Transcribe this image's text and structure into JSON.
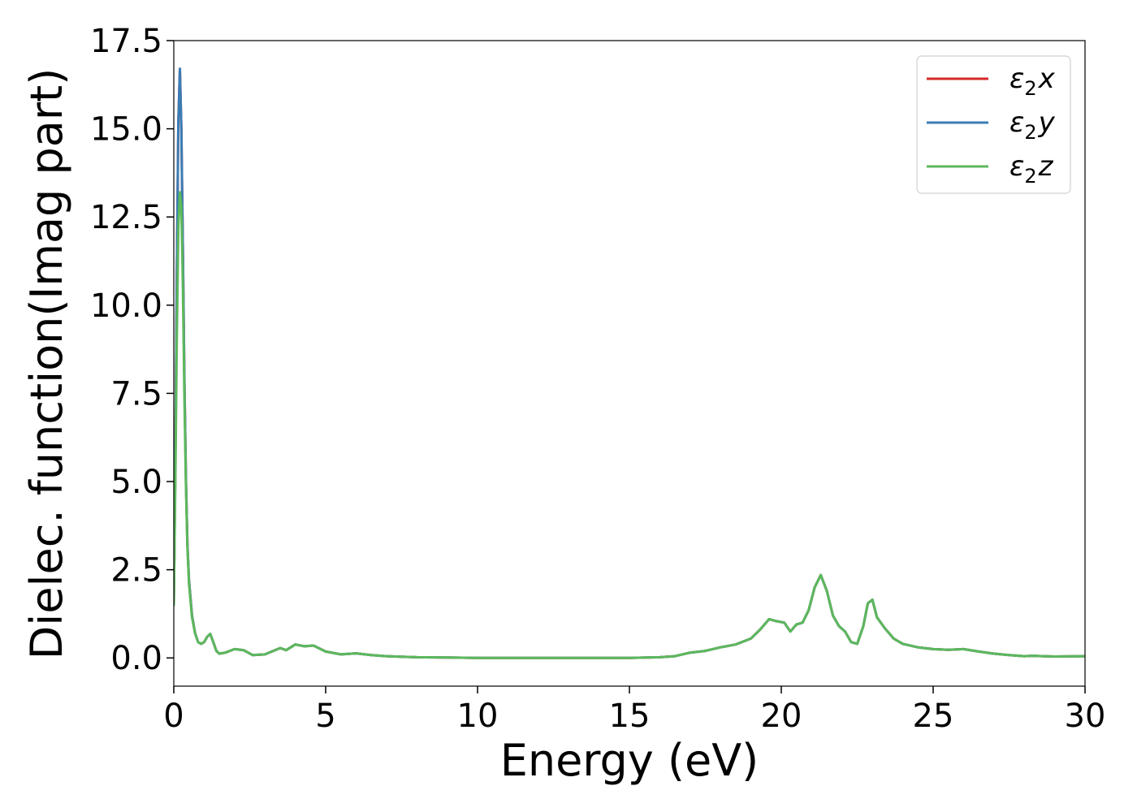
{
  "chart_data": {
    "type": "line",
    "xlabel": "Energy (eV)",
    "ylabel": "Dielec. function(Imag part)",
    "xlim": [
      0,
      30
    ],
    "ylim": [
      -0.8,
      17.5
    ],
    "x_ticks": [
      0,
      5,
      10,
      15,
      20,
      25,
      30
    ],
    "y_ticks": [
      0.0,
      2.5,
      5.0,
      7.5,
      10.0,
      12.5,
      15.0,
      17.5
    ],
    "x_tick_labels": [
      "0",
      "5",
      "10",
      "15",
      "20",
      "25",
      "30"
    ],
    "y_tick_labels": [
      "0.0",
      "2.5",
      "5.0",
      "7.5",
      "10.0",
      "12.5",
      "15.0",
      "17.5"
    ],
    "grid": false,
    "legend_position": "top-right",
    "series": [
      {
        "name": "ε₂x",
        "legend_main": "ε",
        "legend_sub": "2",
        "legend_var": "x",
        "color": "#d62728",
        "x": [
          0,
          0.05,
          0.1,
          0.15,
          0.2,
          0.25,
          0.3,
          0.35,
          0.4,
          0.45,
          0.5,
          0.6,
          0.7,
          0.8,
          0.9,
          1.0,
          1.1,
          1.2,
          1.3,
          1.4,
          1.5,
          1.7,
          2.0,
          2.3,
          2.6,
          3.0,
          3.5,
          3.7,
          4.0,
          4.3,
          4.6,
          5.0,
          5.5,
          6.0,
          6.5,
          7.0,
          8.0,
          9.0,
          10.0,
          11.0,
          12.0,
          13.0,
          14.0,
          15.0,
          16.0,
          16.5,
          17.0,
          17.5,
          18.0,
          18.5,
          19.0,
          19.3,
          19.6,
          19.8,
          20.1,
          20.3,
          20.5,
          20.7,
          20.9,
          21.1,
          21.3,
          21.5,
          21.7,
          21.9,
          22.1,
          22.3,
          22.5,
          22.7,
          22.85,
          23.0,
          23.15,
          23.4,
          23.7,
          24.0,
          24.5,
          25.0,
          25.5,
          26.0,
          26.5,
          27.0,
          27.5,
          28.0,
          28.3,
          28.6,
          29.0,
          30.0
        ],
        "values": [
          1.5,
          5.5,
          10.8,
          15.2,
          16.7,
          15.0,
          11.5,
          7.8,
          5.0,
          3.2,
          2.2,
          1.2,
          0.7,
          0.45,
          0.4,
          0.45,
          0.6,
          0.68,
          0.45,
          0.2,
          0.12,
          0.15,
          0.25,
          0.22,
          0.08,
          0.1,
          0.28,
          0.22,
          0.38,
          0.33,
          0.35,
          0.18,
          0.1,
          0.13,
          0.08,
          0.05,
          0.02,
          0.01,
          0.0,
          0.0,
          0.0,
          0.0,
          0.0,
          0.0,
          0.02,
          0.05,
          0.15,
          0.2,
          0.3,
          0.38,
          0.55,
          0.8,
          1.1,
          1.05,
          1.0,
          0.75,
          0.95,
          1.0,
          1.35,
          2.0,
          2.35,
          1.9,
          1.2,
          0.9,
          0.75,
          0.45,
          0.4,
          0.9,
          1.55,
          1.65,
          1.15,
          0.85,
          0.55,
          0.4,
          0.3,
          0.25,
          0.23,
          0.25,
          0.18,
          0.12,
          0.08,
          0.05,
          0.06,
          0.05,
          0.04,
          0.05
        ]
      },
      {
        "name": "ε₂y",
        "legend_main": "ε",
        "legend_sub": "2",
        "legend_var": "y",
        "color": "#3a7db5",
        "x": [
          0,
          0.05,
          0.1,
          0.15,
          0.2,
          0.25,
          0.3,
          0.35,
          0.4,
          0.45,
          0.5,
          0.6,
          0.7,
          0.8,
          0.9,
          1.0,
          1.1,
          1.2,
          1.3,
          1.4,
          1.5,
          1.7,
          2.0,
          2.3,
          2.6,
          3.0,
          3.5,
          3.7,
          4.0,
          4.3,
          4.6,
          5.0,
          5.5,
          6.0,
          6.5,
          7.0,
          8.0,
          9.0,
          10.0,
          11.0,
          12.0,
          13.0,
          14.0,
          15.0,
          16.0,
          16.5,
          17.0,
          17.5,
          18.0,
          18.5,
          19.0,
          19.3,
          19.6,
          19.8,
          20.1,
          20.3,
          20.5,
          20.7,
          20.9,
          21.1,
          21.3,
          21.5,
          21.7,
          21.9,
          22.1,
          22.3,
          22.5,
          22.7,
          22.85,
          23.0,
          23.15,
          23.4,
          23.7,
          24.0,
          24.5,
          25.0,
          25.5,
          26.0,
          26.5,
          27.0,
          27.5,
          28.0,
          28.3,
          28.6,
          29.0,
          30.0
        ],
        "values": [
          1.5,
          5.5,
          10.8,
          15.2,
          16.7,
          15.0,
          11.5,
          7.8,
          5.0,
          3.2,
          2.2,
          1.2,
          0.7,
          0.45,
          0.4,
          0.45,
          0.6,
          0.68,
          0.45,
          0.2,
          0.12,
          0.15,
          0.25,
          0.22,
          0.08,
          0.1,
          0.28,
          0.22,
          0.38,
          0.33,
          0.35,
          0.18,
          0.1,
          0.13,
          0.08,
          0.05,
          0.02,
          0.01,
          0.0,
          0.0,
          0.0,
          0.0,
          0.0,
          0.0,
          0.02,
          0.05,
          0.15,
          0.2,
          0.3,
          0.38,
          0.55,
          0.8,
          1.1,
          1.05,
          1.0,
          0.75,
          0.95,
          1.0,
          1.35,
          2.0,
          2.35,
          1.9,
          1.2,
          0.9,
          0.75,
          0.45,
          0.4,
          0.9,
          1.55,
          1.65,
          1.15,
          0.85,
          0.55,
          0.4,
          0.3,
          0.25,
          0.23,
          0.25,
          0.18,
          0.12,
          0.08,
          0.05,
          0.06,
          0.05,
          0.04,
          0.05
        ]
      },
      {
        "name": "ε₂z",
        "legend_main": "ε",
        "legend_sub": "2",
        "legend_var": "z",
        "color": "#5cb85c",
        "x": [
          0,
          0.05,
          0.1,
          0.15,
          0.2,
          0.25,
          0.3,
          0.35,
          0.4,
          0.45,
          0.5,
          0.6,
          0.7,
          0.8,
          0.9,
          1.0,
          1.1,
          1.2,
          1.3,
          1.4,
          1.5,
          1.7,
          2.0,
          2.3,
          2.6,
          3.0,
          3.5,
          3.7,
          4.0,
          4.3,
          4.6,
          5.0,
          5.5,
          6.0,
          6.5,
          7.0,
          8.0,
          9.0,
          10.0,
          11.0,
          12.0,
          13.0,
          14.0,
          15.0,
          16.0,
          16.5,
          17.0,
          17.5,
          18.0,
          18.5,
          19.0,
          19.3,
          19.6,
          19.8,
          20.1,
          20.3,
          20.5,
          20.7,
          20.9,
          21.1,
          21.3,
          21.5,
          21.7,
          21.9,
          22.1,
          22.3,
          22.5,
          22.7,
          22.85,
          23.0,
          23.15,
          23.4,
          23.7,
          24.0,
          24.5,
          25.0,
          25.5,
          26.0,
          26.5,
          27.0,
          27.5,
          28.0,
          28.3,
          28.6,
          29.0,
          30.0
        ],
        "values": [
          1.5,
          5.0,
          9.0,
          12.2,
          13.2,
          12.8,
          10.5,
          7.3,
          4.8,
          3.1,
          2.1,
          1.15,
          0.7,
          0.45,
          0.4,
          0.45,
          0.6,
          0.68,
          0.45,
          0.2,
          0.12,
          0.15,
          0.25,
          0.22,
          0.08,
          0.1,
          0.28,
          0.22,
          0.38,
          0.33,
          0.35,
          0.18,
          0.1,
          0.13,
          0.08,
          0.05,
          0.02,
          0.01,
          0.0,
          0.0,
          0.0,
          0.0,
          0.0,
          0.0,
          0.02,
          0.05,
          0.15,
          0.2,
          0.3,
          0.38,
          0.55,
          0.8,
          1.1,
          1.05,
          1.0,
          0.75,
          0.95,
          1.0,
          1.35,
          2.0,
          2.35,
          1.9,
          1.2,
          0.9,
          0.75,
          0.45,
          0.4,
          0.9,
          1.55,
          1.65,
          1.15,
          0.85,
          0.55,
          0.4,
          0.3,
          0.25,
          0.23,
          0.25,
          0.18,
          0.12,
          0.08,
          0.05,
          0.06,
          0.05,
          0.04,
          0.05
        ]
      }
    ]
  }
}
